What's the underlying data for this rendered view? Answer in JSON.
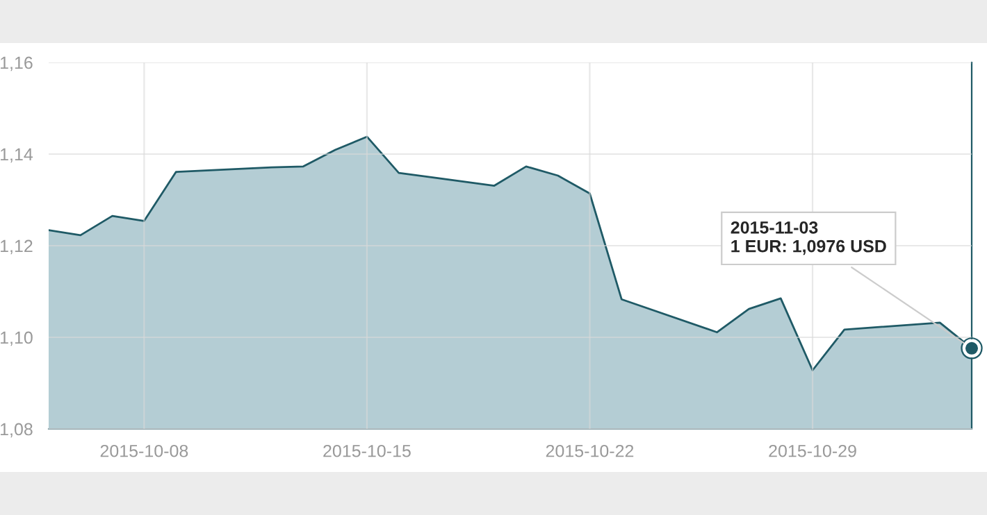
{
  "chart_data": {
    "type": "area",
    "x": [
      "2015-10-05",
      "2015-10-06",
      "2015-10-07",
      "2015-10-08",
      "2015-10-09",
      "2015-10-12",
      "2015-10-13",
      "2015-10-14",
      "2015-10-15",
      "2015-10-16",
      "2015-10-19",
      "2015-10-20",
      "2015-10-21",
      "2015-10-22",
      "2015-10-23",
      "2015-10-26",
      "2015-10-27",
      "2015-10-28",
      "2015-10-29",
      "2015-10-30",
      "2015-11-02",
      "2015-11-03"
    ],
    "series": [
      {
        "color": "#1f5a66",
        "values": [
          1.1234,
          1.1223,
          1.1265,
          1.1254,
          1.1361,
          1.1371,
          1.1373,
          1.1409,
          1.1438,
          1.1359,
          1.1331,
          1.1373,
          1.1353,
          1.1314,
          1.1083,
          1.1011,
          1.1062,
          1.1085,
          1.0928,
          1.1017,
          1.1032,
          1.0976
        ]
      }
    ],
    "xlim": [
      "2015-10-05",
      "2015-11-03"
    ],
    "xticks": [
      "2015-10-08",
      "2015-10-15",
      "2015-10-22",
      "2015-10-29"
    ],
    "ylim": [
      1.08,
      1.16
    ],
    "yticks": [
      {
        "value": 1.08,
        "label": "1,08"
      },
      {
        "value": 1.1,
        "label": "1,10"
      },
      {
        "value": 1.12,
        "label": "1,12"
      },
      {
        "value": 1.14,
        "label": "1,14"
      },
      {
        "value": 1.16,
        "label": "1,16"
      }
    ],
    "grid": true,
    "annotations": [
      {
        "text": "2015-11-03\n1 EUR: 1,0976 USD",
        "x": "2015-11-03",
        "y": 1.0976
      }
    ]
  }
}
